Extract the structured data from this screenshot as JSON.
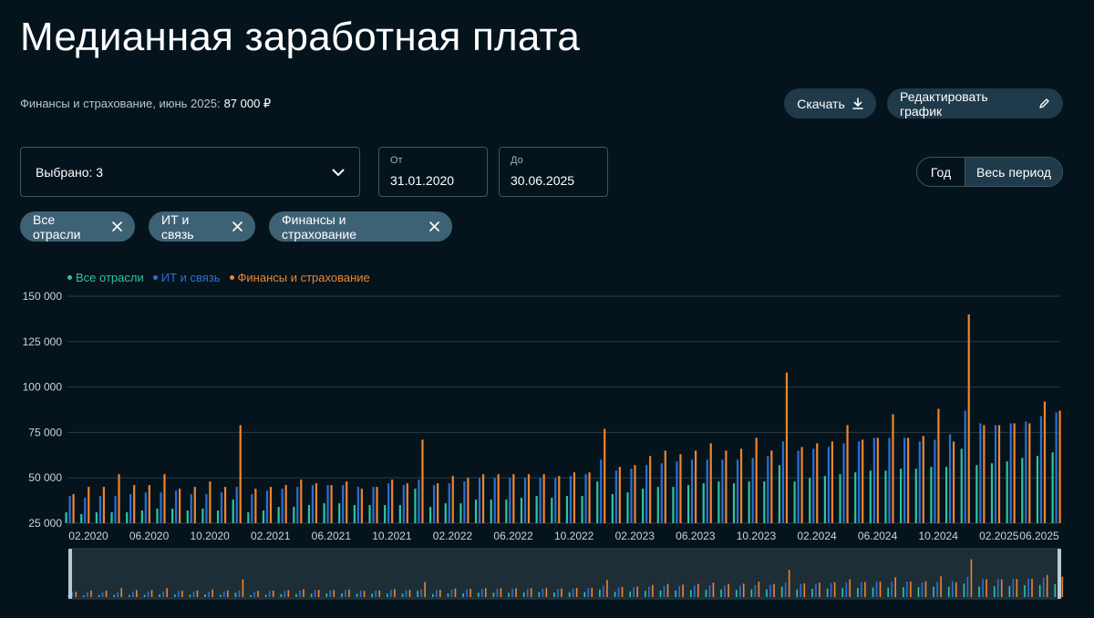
{
  "title": "Медианная заработная плата",
  "subtitle": {
    "text": "Финансы и страхование, июнь 2025:",
    "value": "87 000 ₽"
  },
  "buttons": {
    "download": "Скачать",
    "edit": "Редактировать график"
  },
  "filters": {
    "select_label": "Выбрано: 3",
    "from_label": "От",
    "from_value": "31.01.2020",
    "to_label": "До",
    "to_value": "30.06.2025"
  },
  "period": {
    "year": "Год",
    "all": "Весь период"
  },
  "chips": [
    "Все отрасли",
    "ИТ и связь",
    "Финансы и страхование"
  ],
  "colors": {
    "all": "#2fc4a0",
    "it": "#2b6fd6",
    "fin": "#f0842c",
    "grid": "#2a3a44",
    "text": "#c9d3d9"
  },
  "icons": {
    "download": "download-icon",
    "edit": "pencil-icon",
    "chevron": "chevron-down-icon",
    "close": "close-icon"
  },
  "chart_data": {
    "type": "bar",
    "series": [
      {
        "name": "Все отрасли",
        "key": "all",
        "values": [
          31000,
          30000,
          31000,
          31000,
          31000,
          32000,
          33000,
          33000,
          32000,
          33000,
          32000,
          38000,
          31000,
          32000,
          34000,
          34000,
          35000,
          36000,
          36000,
          35000,
          35000,
          35000,
          35000,
          44000,
          34000,
          36000,
          36000,
          38000,
          38000,
          38000,
          39000,
          40000,
          39000,
          40000,
          40000,
          48000,
          41000,
          42000,
          44000,
          45000,
          45000,
          46000,
          47000,
          48000,
          47000,
          48000,
          48000,
          57000,
          48000,
          50000,
          51000,
          52000,
          53000,
          54000,
          54000,
          55000,
          55000,
          56000,
          56000,
          66000,
          57000,
          58000,
          59000,
          61000,
          62000,
          64000
        ]
      },
      {
        "name": "ИТ и связь",
        "key": "it",
        "values": [
          40000,
          39000,
          40000,
          40000,
          41000,
          42000,
          42000,
          43000,
          41000,
          41000,
          42000,
          45000,
          41000,
          43000,
          44000,
          45000,
          46000,
          46000,
          46000,
          45000,
          45000,
          47000,
          46000,
          49000,
          46000,
          47000,
          48000,
          50000,
          50000,
          50000,
          50000,
          50000,
          50000,
          51000,
          52000,
          60000,
          54000,
          55000,
          57000,
          58000,
          59000,
          60000,
          60000,
          60000,
          60000,
          61000,
          62000,
          70000,
          65000,
          66000,
          67000,
          69000,
          70000,
          72000,
          72000,
          72000,
          70000,
          71000,
          74000,
          87000,
          80000,
          79000,
          80000,
          81000,
          84000,
          86000
        ]
      },
      {
        "name": "Финансы и страхование",
        "key": "fin",
        "values": [
          41000,
          45000,
          45000,
          52000,
          46000,
          46000,
          52000,
          44000,
          45000,
          48000,
          45000,
          79000,
          44000,
          45000,
          46000,
          49000,
          47000,
          46000,
          48000,
          44000,
          45000,
          49000,
          47000,
          71000,
          47000,
          51000,
          50000,
          52000,
          52000,
          52000,
          52000,
          52000,
          51000,
          53000,
          53000,
          77000,
          56000,
          57000,
          62000,
          65000,
          63000,
          65000,
          69000,
          65000,
          66000,
          72000,
          65000,
          108000,
          67000,
          69000,
          70000,
          79000,
          71000,
          72000,
          85000,
          72000,
          73000,
          88000,
          70000,
          140000,
          79000,
          79000,
          80000,
          80000,
          92000,
          87000
        ]
      }
    ],
    "x_ticks": [
      "02.2020",
      "06.2020",
      "10.2020",
      "02.2021",
      "06.2021",
      "10.2021",
      "02.2022",
      "06.2022",
      "10.2022",
      "02.2023",
      "06.2023",
      "10.2023",
      "02.2024",
      "06.2024",
      "10.2024",
      "02.2025",
      "06.2025"
    ],
    "y_ticks": [
      "150 000",
      "125 000",
      "100 000",
      "75 000",
      "50 000",
      "25 000"
    ],
    "ylim": [
      25000,
      150000
    ]
  }
}
